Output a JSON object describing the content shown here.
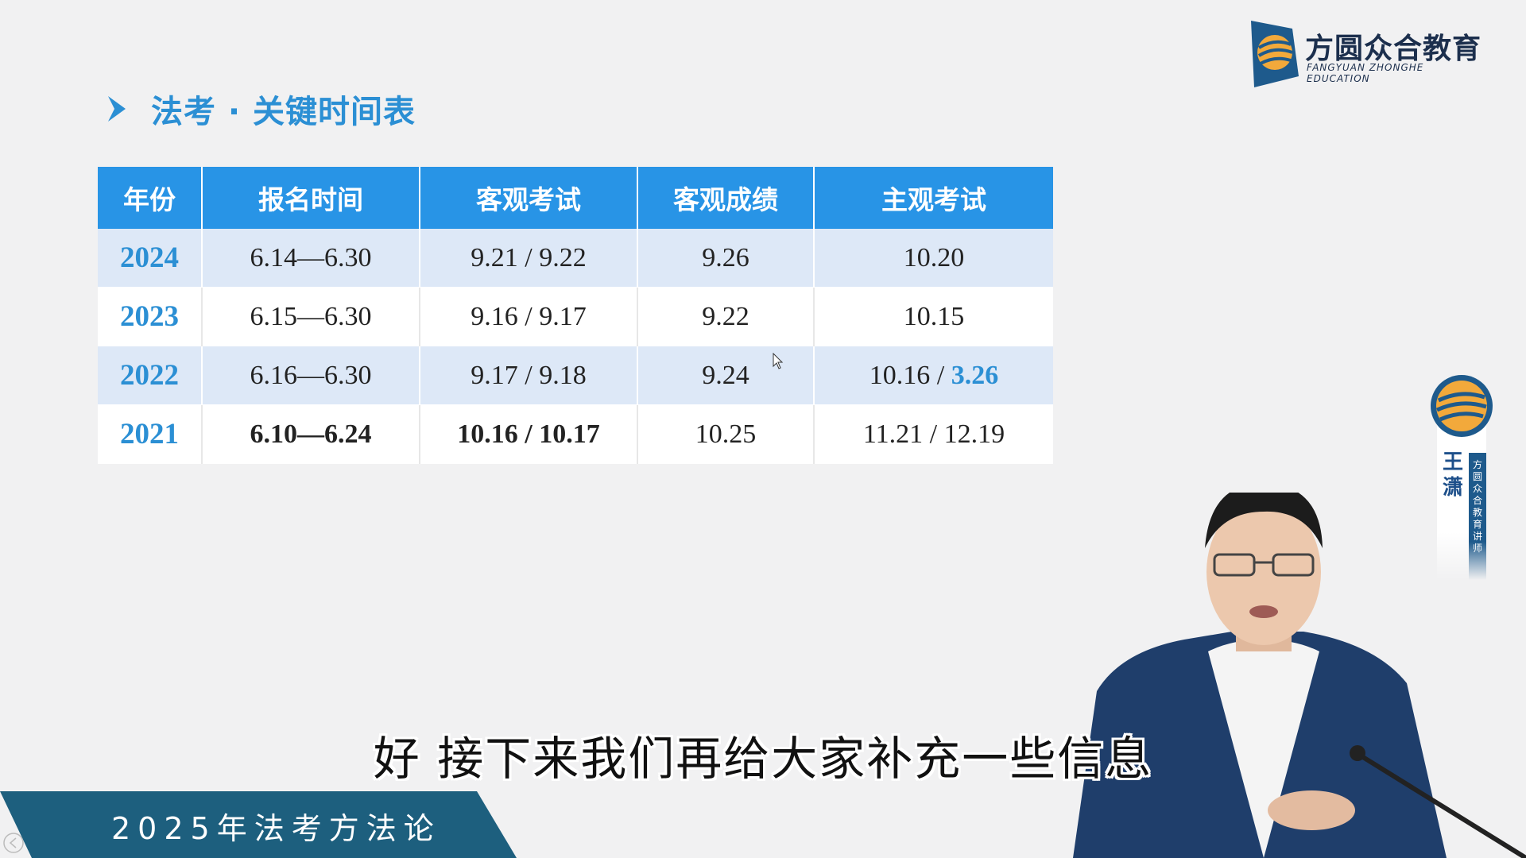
{
  "slide": {
    "title": "法考 · 关键时间表"
  },
  "table": {
    "headers": [
      "年份",
      "报名时间",
      "客观考试",
      "客观成绩",
      "主观考试"
    ],
    "rows": [
      {
        "year": "2024",
        "registration": "6.14—6.30",
        "objective_exam": "9.21  / 9.22",
        "objective_score": "9.26",
        "subjective_a": "10.20",
        "subjective_b": ""
      },
      {
        "year": "2023",
        "registration": "6.15—6.30",
        "objective_exam": "9.16  / 9.17",
        "objective_score": "9.22",
        "subjective_a": "10.15",
        "subjective_b": ""
      },
      {
        "year": "2022",
        "registration": "6.16—6.30",
        "objective_exam": "9.17 / 9.18",
        "objective_score": "9.24",
        "subjective_a": "10.16 / ",
        "subjective_b": "3.26"
      },
      {
        "year": "2021",
        "registration": "6.10—6.24",
        "objective_exam": "10.16 / 10.17",
        "objective_score": "10.25",
        "subjective_a": "11.21 / 12.19",
        "subjective_b": ""
      }
    ],
    "highlight_color": "#2b8fd4",
    "header_color": "#2894e6"
  },
  "brand": {
    "name_cn": "方圆众合教育",
    "name_en": "FANGYUAN ZHONGHE EDUCATION"
  },
  "lecturer": {
    "name": "王潇",
    "role": "方圆众合教育讲师"
  },
  "subtitle": "好 接下来我们再给大家补充一些信息",
  "banner": {
    "text": "2025年法考方法论",
    "color": "#1d5f7e"
  }
}
